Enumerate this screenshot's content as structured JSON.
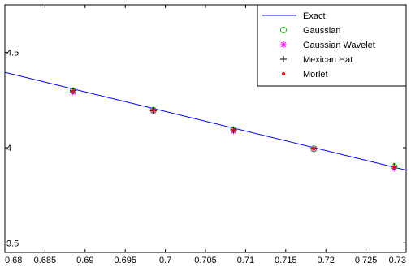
{
  "chart_data": {
    "type": "line",
    "xlim": [
      0.68,
      0.73
    ],
    "ylim": [
      3.45,
      4.75
    ],
    "xticks": [
      0.68,
      0.685,
      0.69,
      0.695,
      0.7,
      0.705,
      0.71,
      0.715,
      0.72,
      0.725,
      0.73
    ],
    "xtick_labels": [
      "0.68",
      "0.685",
      "0.69",
      "0.695",
      "0.7",
      "0.705",
      "0.71",
      "0.715",
      "0.72",
      "0.725",
      "0.73"
    ],
    "yticks": [
      3.5,
      4,
      4.5
    ],
    "ytick_labels": [
      "3.5",
      "4",
      "4.5"
    ],
    "grid": false,
    "legend_position": "top-right",
    "series": [
      {
        "name": "Exact",
        "kind": "line",
        "color": "#0000ff",
        "x": [
          0.68,
          0.73
        ],
        "y": [
          4.396,
          3.882
        ]
      },
      {
        "name": "Gaussian",
        "kind": "marker",
        "marker": "circle-open",
        "color": "#00cc00",
        "x": [
          0.6885,
          0.6985,
          0.7085,
          0.7185,
          0.7285
        ],
        "y": [
          4.299,
          4.197,
          4.094,
          3.994,
          3.9
        ]
      },
      {
        "name": "Gaussian Wavelet",
        "kind": "marker",
        "marker": "asterisk",
        "color": "#ff00ff",
        "x": [
          0.6885,
          0.6985,
          0.7085,
          0.7185,
          0.7285
        ],
        "y": [
          4.292,
          4.194,
          4.087,
          3.994,
          3.891
        ]
      },
      {
        "name": "Mexican Hat",
        "kind": "marker",
        "marker": "plus",
        "color": "#000000",
        "x": [
          0.6885,
          0.6985,
          0.7085,
          0.7185,
          0.7285
        ],
        "y": [
          4.299,
          4.195,
          4.094,
          3.996,
          3.903
        ]
      },
      {
        "name": "Morlet",
        "kind": "marker",
        "marker": "dot",
        "color": "#ff0000",
        "x": [
          0.6885,
          0.6985,
          0.7085,
          0.7185,
          0.7285
        ],
        "y": [
          4.297,
          4.196,
          4.093,
          3.995,
          3.899
        ]
      }
    ]
  }
}
